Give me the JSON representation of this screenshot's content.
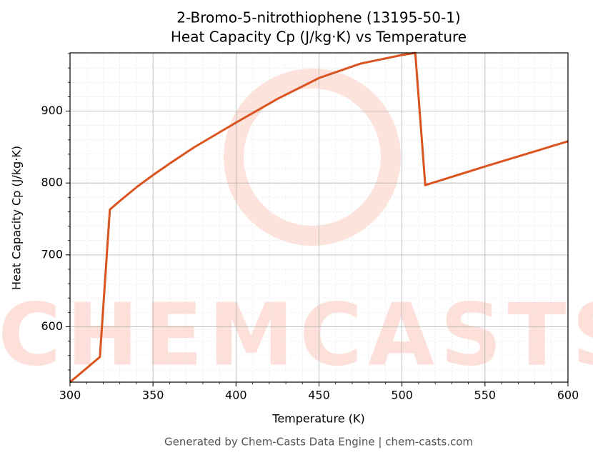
{
  "chart_data": {
    "type": "line",
    "title": [
      "2-Bromo-5-nitrothiophene (13195-50-1)",
      "Heat Capacity Cp (J/kg·K) vs Temperature"
    ],
    "x_label": "Temperature (K)",
    "y_label": "Heat Capacity Cp (J/kg·K)",
    "footer": "Generated by Chem-Casts Data Engine | chem-casts.com",
    "watermark": "CHEMCASTS",
    "x": [
      300,
      318,
      324,
      330,
      340,
      350,
      360,
      375,
      400,
      425,
      450,
      475,
      500,
      508,
      514,
      550,
      600
    ],
    "series": [
      {
        "name": "Cp",
        "color": "#d9541e",
        "values": [
          523,
          558,
          763,
          775,
          794,
          811,
          827,
          850,
          884,
          917,
          946,
          966,
          978,
          981,
          797,
          823,
          858
        ]
      }
    ],
    "xlim": [
      300,
      600
    ],
    "xticks": [
      300,
      350,
      400,
      450,
      500,
      550,
      600
    ],
    "ylim": [
      523,
      981
    ],
    "yticks": [
      600,
      700,
      800,
      900
    ],
    "grid": true,
    "minor_grid": true
  }
}
